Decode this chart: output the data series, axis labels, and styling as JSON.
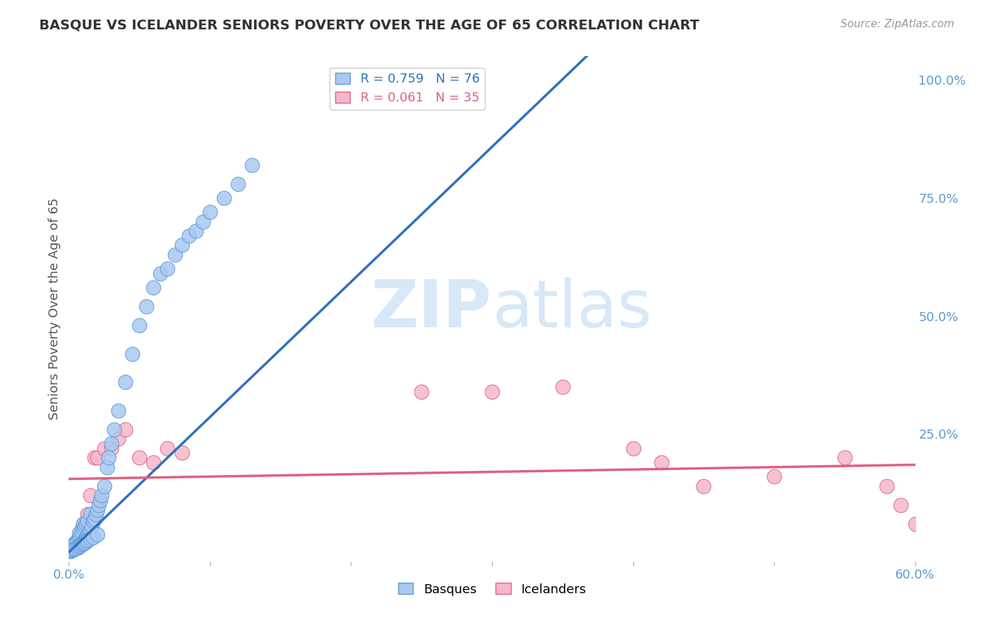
{
  "title": "BASQUE VS ICELANDER SENIORS POVERTY OVER THE AGE OF 65 CORRELATION CHART",
  "source": "Source: ZipAtlas.com",
  "ylabel": "Seniors Poverty Over the Age of 65",
  "xlim": [
    0.0,
    0.6
  ],
  "ylim": [
    -0.02,
    1.05
  ],
  "xticks": [
    0.0,
    0.1,
    0.2,
    0.3,
    0.4,
    0.5,
    0.6
  ],
  "xticklabels": [
    "0.0%",
    "",
    "",
    "",
    "",
    "",
    "60.0%"
  ],
  "yticks_right": [
    0.25,
    0.5,
    0.75,
    1.0
  ],
  "ytick_labels_right": [
    "25.0%",
    "50.0%",
    "75.0%",
    "100.0%"
  ],
  "basque_R": 0.759,
  "basque_N": 76,
  "icelander_R": 0.061,
  "icelander_N": 35,
  "basque_color": "#A8C8F0",
  "icelander_color": "#F5B8CB",
  "basque_edge_color": "#5B9BD5",
  "icelander_edge_color": "#E06080",
  "basque_line_color": "#3070C0",
  "icelander_line_color": "#E06080",
  "watermark_color": "#D8E8F8",
  "background_color": "#FFFFFF",
  "grid_color": "#CCCCCC",
  "title_color": "#333333",
  "source_color": "#999999",
  "tick_color": "#5B9BD5",
  "ylabel_color": "#555555",
  "basque_line_slope": 2.86,
  "basque_line_intercept": 0.0,
  "icelander_line_slope": 0.05,
  "icelander_line_intercept": 0.155,
  "basque_x": [
    0.001,
    0.002,
    0.002,
    0.003,
    0.003,
    0.004,
    0.004,
    0.005,
    0.005,
    0.006,
    0.006,
    0.007,
    0.007,
    0.007,
    0.008,
    0.008,
    0.009,
    0.009,
    0.01,
    0.01,
    0.01,
    0.011,
    0.011,
    0.012,
    0.012,
    0.013,
    0.013,
    0.014,
    0.015,
    0.015,
    0.016,
    0.017,
    0.018,
    0.019,
    0.02,
    0.021,
    0.022,
    0.023,
    0.025,
    0.027,
    0.028,
    0.03,
    0.032,
    0.035,
    0.04,
    0.045,
    0.05,
    0.055,
    0.06,
    0.065,
    0.07,
    0.075,
    0.08,
    0.085,
    0.09,
    0.095,
    0.1,
    0.11,
    0.12,
    0.13,
    0.001,
    0.002,
    0.003,
    0.004,
    0.005,
    0.006,
    0.007,
    0.008,
    0.009,
    0.01,
    0.011,
    0.012,
    0.013,
    0.015,
    0.017,
    0.02
  ],
  "basque_y": [
    0.005,
    0.008,
    0.012,
    0.006,
    0.015,
    0.01,
    0.018,
    0.008,
    0.02,
    0.012,
    0.025,
    0.015,
    0.03,
    0.04,
    0.018,
    0.035,
    0.02,
    0.04,
    0.022,
    0.05,
    0.06,
    0.025,
    0.055,
    0.03,
    0.06,
    0.035,
    0.065,
    0.04,
    0.045,
    0.08,
    0.055,
    0.065,
    0.07,
    0.08,
    0.09,
    0.1,
    0.11,
    0.12,
    0.14,
    0.18,
    0.2,
    0.23,
    0.26,
    0.3,
    0.36,
    0.42,
    0.48,
    0.52,
    0.56,
    0.59,
    0.6,
    0.63,
    0.65,
    0.67,
    0.68,
    0.7,
    0.72,
    0.75,
    0.78,
    0.82,
    0.002,
    0.004,
    0.005,
    0.006,
    0.008,
    0.01,
    0.012,
    0.014,
    0.016,
    0.018,
    0.02,
    0.022,
    0.025,
    0.028,
    0.032,
    0.038
  ],
  "icelander_x": [
    0.001,
    0.002,
    0.003,
    0.004,
    0.005,
    0.006,
    0.007,
    0.008,
    0.009,
    0.01,
    0.011,
    0.012,
    0.013,
    0.015,
    0.018,
    0.02,
    0.025,
    0.03,
    0.035,
    0.04,
    0.05,
    0.06,
    0.07,
    0.08,
    0.25,
    0.3,
    0.35,
    0.4,
    0.45,
    0.5,
    0.42,
    0.55,
    0.58,
    0.59,
    0.6
  ],
  "icelander_y": [
    0.005,
    0.008,
    0.01,
    0.015,
    0.02,
    0.025,
    0.03,
    0.04,
    0.05,
    0.06,
    0.04,
    0.055,
    0.08,
    0.12,
    0.2,
    0.2,
    0.22,
    0.22,
    0.24,
    0.26,
    0.2,
    0.19,
    0.22,
    0.21,
    0.34,
    0.34,
    0.35,
    0.22,
    0.14,
    0.16,
    0.19,
    0.2,
    0.14,
    0.1,
    0.06
  ]
}
